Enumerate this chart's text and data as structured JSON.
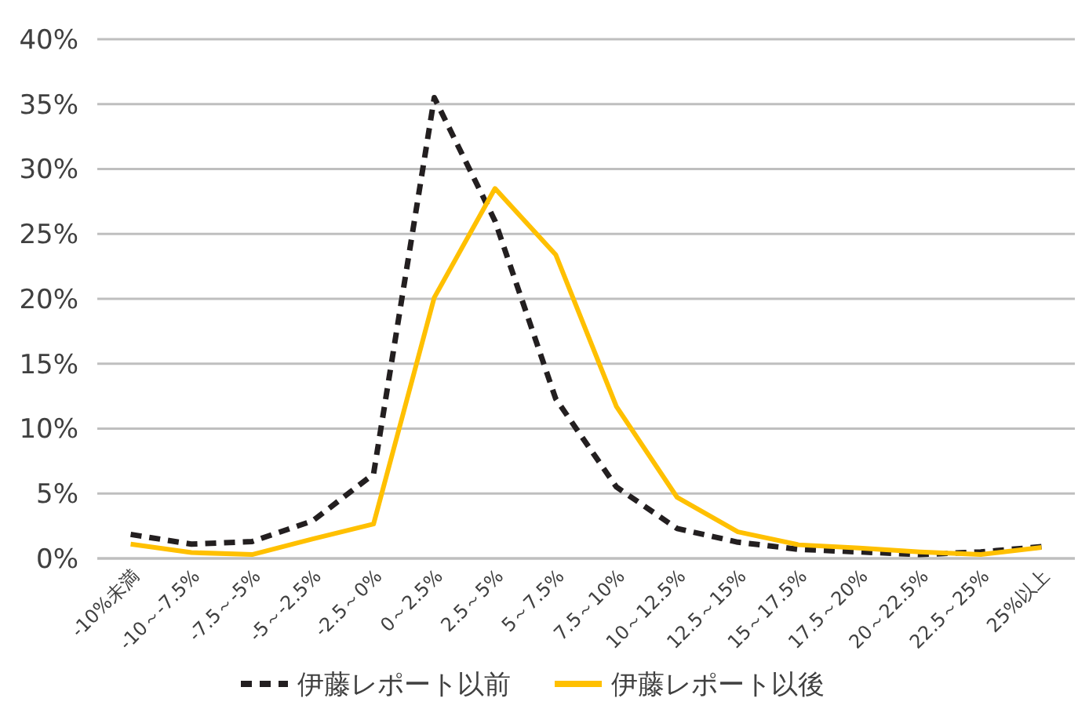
{
  "chart_data": {
    "type": "line",
    "categories": [
      "-10%未満",
      "-10～-7.5%",
      "-7.5～-5%",
      "-5～-2.5%",
      "-2.5～0%",
      "0～2.5%",
      "2.5～5%",
      "5～7.5%",
      "7.5～10%",
      "10～12.5%",
      "12.5～15%",
      "15～17.5%",
      "17.5～20%",
      "20～22.5%",
      "22.5～25%",
      "25%以上"
    ],
    "series": [
      {
        "name": "伊藤レポート以前",
        "color": "#231f20",
        "line_style": "dashed",
        "values": [
          1.85,
          1.1,
          1.3,
          2.9,
          6.5,
          35.5,
          26,
          12.3,
          5.5,
          2.3,
          1.25,
          0.7,
          0.5,
          0.3,
          0.5,
          0.9
        ]
      },
      {
        "name": "伊藤レポート以後",
        "color": "#ffc000",
        "line_style": "solid",
        "values": [
          1.1,
          0.45,
          0.3,
          1.5,
          2.65,
          20.1,
          28.5,
          23.4,
          11.7,
          4.7,
          2.05,
          1.05,
          0.8,
          0.5,
          0.3,
          0.85
        ]
      }
    ],
    "ylim": [
      0,
      40
    ],
    "yticks": [
      {
        "value": 0,
        "label": "0%"
      },
      {
        "value": 5,
        "label": "5%"
      },
      {
        "value": 10,
        "label": "10%"
      },
      {
        "value": 15,
        "label": "15%"
      },
      {
        "value": 20,
        "label": "20%"
      },
      {
        "value": 25,
        "label": "25%"
      },
      {
        "value": 30,
        "label": "30%"
      },
      {
        "value": 35,
        "label": "35%"
      },
      {
        "value": 40,
        "label": "40%"
      }
    ],
    "grid": "y",
    "legend": "bottom",
    "marker": "none"
  }
}
